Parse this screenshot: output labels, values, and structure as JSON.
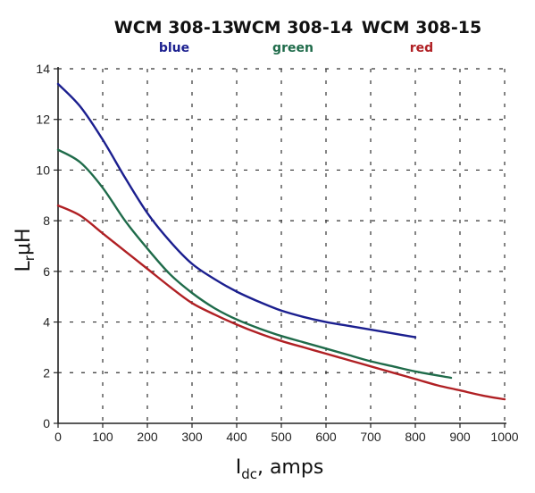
{
  "chart_data": {
    "type": "line",
    "ylabel_main": "L",
    "ylabel_sub": "r",
    "ylabel_unit": "μH",
    "xlabel_main": "I",
    "xlabel_sub": "dc",
    "xlabel_unit": ", amps",
    "xlim": [
      0,
      1000
    ],
    "ylim": [
      0,
      14
    ],
    "x_ticks": [
      "0",
      "100",
      "200",
      "300",
      "400",
      "500",
      "600",
      "700",
      "800",
      "900",
      "1000"
    ],
    "y_ticks": [
      "0",
      "2",
      "4",
      "6",
      "8",
      "10",
      "12",
      "14"
    ],
    "grid": true,
    "legend_position": "top",
    "series": [
      {
        "name": "WCM 308-13",
        "color_label": "blue",
        "color": "#1b1f8f",
        "x": [
          0,
          50,
          100,
          150,
          200,
          250,
          300,
          350,
          400,
          450,
          500,
          550,
          600,
          650,
          700,
          750,
          800
        ],
        "y": [
          13.4,
          12.5,
          11.2,
          9.7,
          8.3,
          7.2,
          6.3,
          5.7,
          5.2,
          4.8,
          4.45,
          4.2,
          4.0,
          3.85,
          3.7,
          3.55,
          3.4
        ]
      },
      {
        "name": "WCM 308-14",
        "color_label": "green",
        "color": "#1f6b4a",
        "x": [
          0,
          50,
          100,
          150,
          200,
          250,
          300,
          350,
          400,
          450,
          500,
          550,
          600,
          650,
          700,
          750,
          800,
          880
        ],
        "y": [
          10.8,
          10.3,
          9.3,
          8.0,
          6.9,
          5.9,
          5.15,
          4.55,
          4.1,
          3.75,
          3.45,
          3.2,
          2.95,
          2.7,
          2.45,
          2.25,
          2.05,
          1.8
        ]
      },
      {
        "name": "WCM 308-15",
        "color_label": "red",
        "color": "#b02024",
        "x": [
          0,
          50,
          100,
          150,
          200,
          250,
          300,
          350,
          400,
          450,
          500,
          550,
          600,
          650,
          700,
          750,
          800,
          850,
          900,
          950,
          1000
        ],
        "y": [
          8.6,
          8.2,
          7.5,
          6.8,
          6.1,
          5.4,
          4.75,
          4.3,
          3.9,
          3.55,
          3.25,
          3.0,
          2.75,
          2.5,
          2.25,
          2.0,
          1.75,
          1.5,
          1.3,
          1.1,
          0.95
        ]
      }
    ]
  }
}
